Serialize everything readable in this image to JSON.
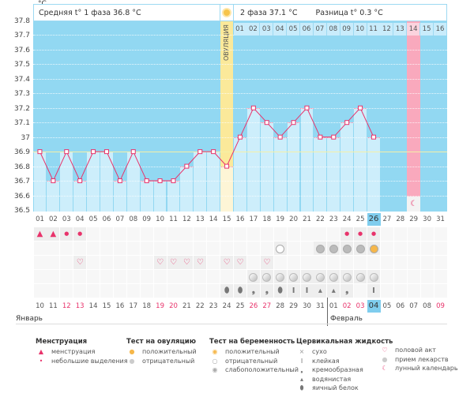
{
  "unit": "°C",
  "header": {
    "phase1": "Средняя t° 1 фаза 36.8 °C",
    "phase2": "2 фаза 37.1 °C",
    "diff": "Разница t° 0.3 °C"
  },
  "ovulation_label": "ОВУЛЯЦИЯ",
  "y_ticks": [
    "37.8",
    "37.7",
    "37.6",
    "37.5",
    "37.4",
    "37.3",
    "37.2",
    "37.1",
    "37",
    "36.9",
    "36.8",
    "36.7",
    "36.6",
    "36.5"
  ],
  "cycle_days": [
    "01",
    "02",
    "03",
    "04",
    "05",
    "06",
    "07",
    "08",
    "09",
    "10",
    "11",
    "12",
    "13",
    "14",
    "15",
    "16",
    "17",
    "18",
    "19",
    "20",
    "21",
    "22",
    "23",
    "24",
    "25",
    "26",
    "27",
    "28",
    "29",
    "30",
    "31"
  ],
  "top_days": [
    "01",
    "02",
    "03",
    "04",
    "05",
    "06",
    "07",
    "08",
    "09",
    "10",
    "11",
    "12",
    "13",
    "14",
    "15",
    "16"
  ],
  "current_day_index": 25,
  "ovulation_day_index": 14,
  "moon_day_index": 28,
  "temperatures": [
    36.9,
    36.7,
    36.9,
    36.7,
    36.9,
    36.9,
    36.7,
    36.9,
    36.7,
    36.7,
    36.7,
    36.8,
    36.9,
    36.9,
    36.8,
    37.0,
    37.2,
    37.1,
    37.0,
    37.1,
    37.2,
    37.0,
    37.0,
    37.1,
    37.2,
    37.0
  ],
  "coverline": 36.9,
  "dates": [
    "10",
    "11",
    "12",
    "13",
    "14",
    "15",
    "16",
    "17",
    "18",
    "19",
    "20",
    "21",
    "22",
    "23",
    "24",
    "25",
    "26",
    "27",
    "28",
    "29",
    "30",
    "31",
    "01",
    "02",
    "03",
    "04",
    "05",
    "06",
    "07",
    "08",
    "09"
  ],
  "weekend_dates": [
    2,
    3,
    9,
    10,
    16,
    17,
    23,
    24,
    30
  ],
  "months": [
    "Январь",
    "Февраль"
  ],
  "rows": {
    "menstruation": {
      "0": "heavy",
      "1": "heavy",
      "2": "light",
      "3": "light",
      "23": "light",
      "24": "light",
      "25": "light"
    },
    "tests": {
      "18": "neg",
      "21": "weak",
      "22": "weak",
      "23": "weak",
      "24": "weak",
      "25": "pos"
    },
    "sex": [
      3,
      9,
      10,
      11,
      12,
      14,
      15,
      17
    ],
    "pills": [
      16,
      17,
      18,
      19,
      20,
      21,
      22,
      23,
      24,
      25
    ],
    "fluid": {
      "14": "egg",
      "15": "egg",
      "16": "creamy",
      "17": "creamy",
      "18": "egg",
      "19": "sticky",
      "20": "sticky",
      "21": "watery",
      "22": "watery",
      "23": "creamy",
      "25": "sticky"
    }
  },
  "legend": [
    {
      "title": "Менструация",
      "items": [
        {
          "icon": "menstruation-icon",
          "label": "менструация"
        },
        {
          "icon": "spotting-icon",
          "label": "небольшие выделения"
        }
      ]
    },
    {
      "title": "Тест на овуляцию",
      "items": [
        {
          "icon": "ovulation-positive-icon",
          "label": "положительный"
        },
        {
          "icon": "ovulation-negative-icon",
          "label": "отрицательный"
        }
      ]
    },
    {
      "title": "Тест на беременность",
      "items": [
        {
          "icon": "pregnancy-positive-icon",
          "label": "положительный"
        },
        {
          "icon": "pregnancy-negative-icon",
          "label": "отрицательный"
        },
        {
          "icon": "pregnancy-weak-icon",
          "label": "слабоположительный"
        }
      ]
    },
    {
      "title": "Цервикальная жидкость",
      "items": [
        {
          "icon": "dry-icon",
          "label": "сухо"
        },
        {
          "icon": "sticky-icon",
          "label": "клейкая"
        },
        {
          "icon": "creamy-icon",
          "label": "кремообразная"
        },
        {
          "icon": "watery-icon",
          "label": "водянистая"
        },
        {
          "icon": "egg-white-icon",
          "label": "яичный белок"
        }
      ]
    },
    {
      "title": "",
      "items": [
        {
          "icon": "heart-icon",
          "label": "половой акт"
        },
        {
          "icon": "pill-icon",
          "label": "прием лекарств"
        },
        {
          "icon": "moon-icon",
          "label": "лунный календарь"
        }
      ]
    }
  ],
  "colors": {
    "bg": "#92d8f2",
    "bar": "#cdeefb",
    "ovulation": "#fbe99a",
    "moon": "#f9a9bd",
    "line": "#e8336b",
    "accent_day": "#7fcdee"
  }
}
